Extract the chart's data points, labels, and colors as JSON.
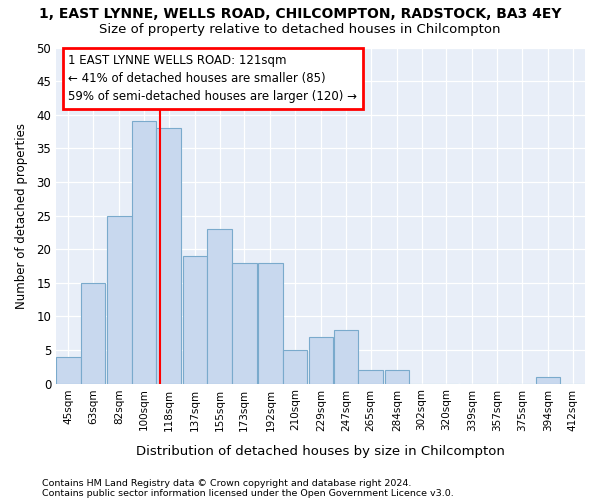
{
  "title": "1, EAST LYNNE, WELLS ROAD, CHILCOMPTON, RADSTOCK, BA3 4EY",
  "subtitle": "Size of property relative to detached houses in Chilcompton",
  "xlabel": "Distribution of detached houses by size in Chilcompton",
  "ylabel": "Number of detached properties",
  "bin_labels": [
    "45sqm",
    "63sqm",
    "82sqm",
    "100sqm",
    "118sqm",
    "137sqm",
    "155sqm",
    "173sqm",
    "192sqm",
    "210sqm",
    "229sqm",
    "247sqm",
    "265sqm",
    "284sqm",
    "302sqm",
    "320sqm",
    "339sqm",
    "357sqm",
    "375sqm",
    "394sqm",
    "412sqm"
  ],
  "bin_edges": [
    45,
    63,
    82,
    100,
    118,
    137,
    155,
    173,
    192,
    210,
    229,
    247,
    265,
    284,
    302,
    320,
    339,
    357,
    375,
    394,
    412
  ],
  "bar_heights": [
    4,
    15,
    25,
    39,
    38,
    19,
    23,
    18,
    18,
    5,
    7,
    8,
    2,
    2,
    0,
    0,
    0,
    0,
    0,
    1,
    0
  ],
  "bar_color": "#c8d8ee",
  "bar_edge_color": "#7aaacc",
  "red_line_x": 121,
  "ylim": [
    0,
    50
  ],
  "yticks": [
    0,
    5,
    10,
    15,
    20,
    25,
    30,
    35,
    40,
    45,
    50
  ],
  "annotation_line1": "1 EAST LYNNE WELLS ROAD: 121sqm",
  "annotation_line2": "← 41% of detached houses are smaller (85)",
  "annotation_line3": "59% of semi-detached houses are larger (120) →",
  "footnote1": "Contains HM Land Registry data © Crown copyright and database right 2024.",
  "footnote2": "Contains public sector information licensed under the Open Government Licence v3.0.",
  "bg_color": "#ffffff",
  "plot_bg_color": "#e8eef8"
}
